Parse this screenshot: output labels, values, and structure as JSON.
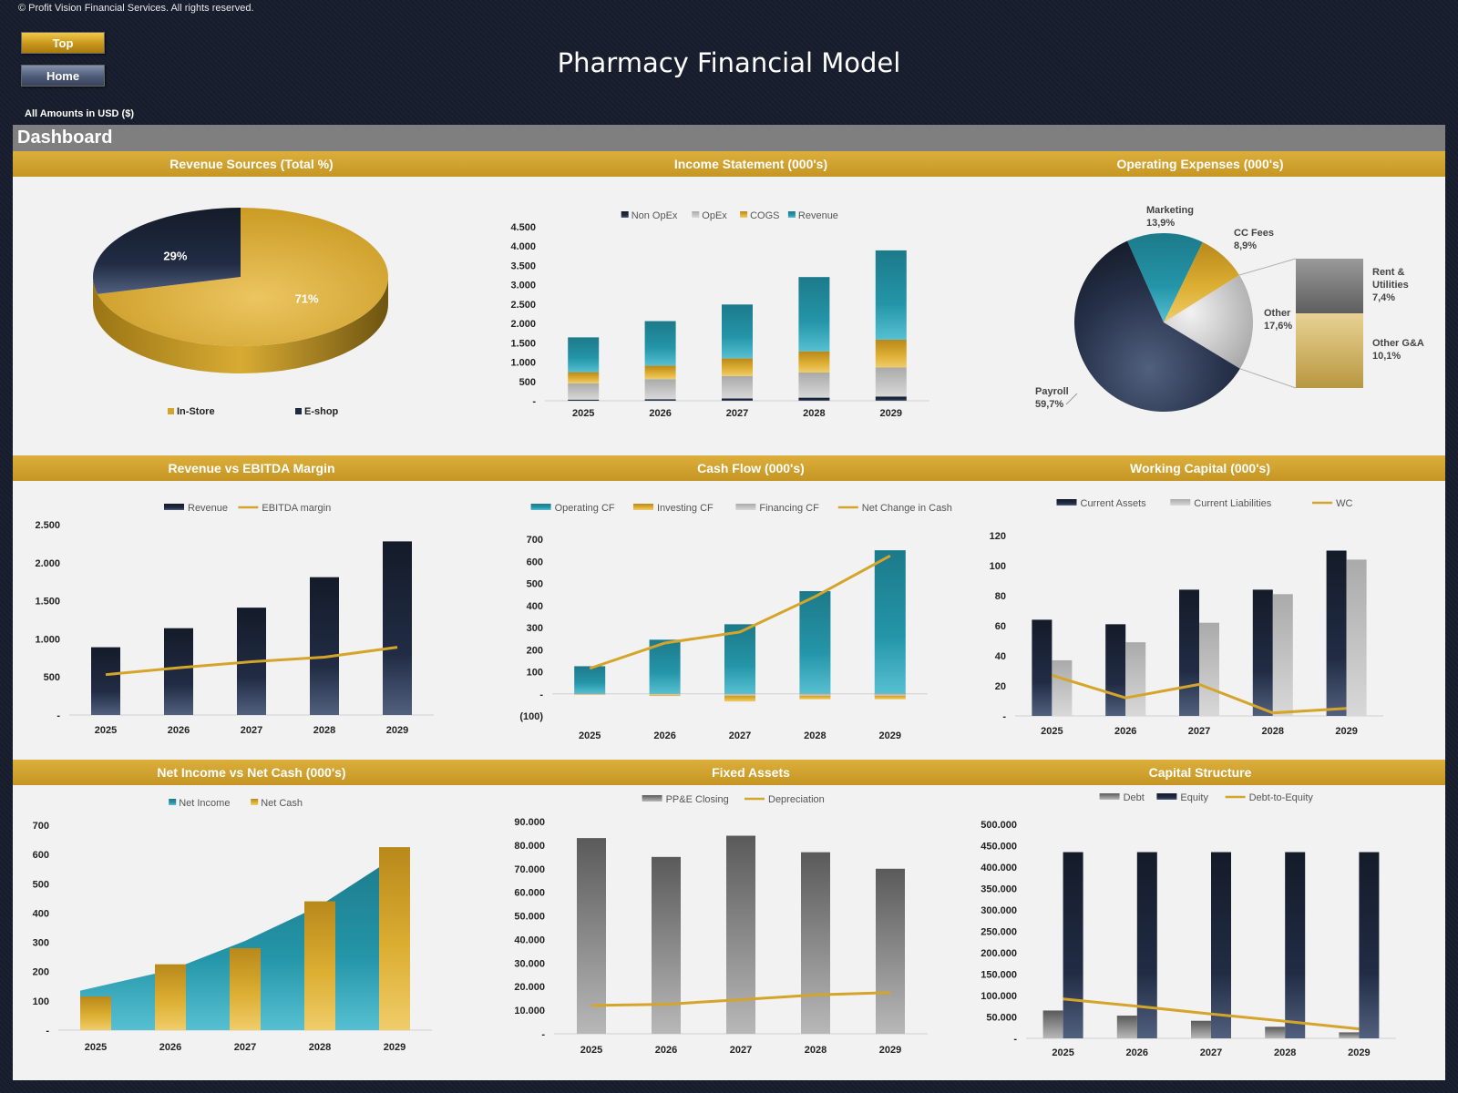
{
  "header": {
    "copyright": "© Profit Vision Financial Services. All rights reserved.",
    "top_button": "Top",
    "home_button": "Home",
    "title": "Pharmacy Financial Model",
    "amounts_note": "All Amounts in  USD ($)",
    "dashboard_label": "Dashboard"
  },
  "colors": {
    "gold": "#d4a52a",
    "navy": "#1b2538",
    "teal": "#23899b",
    "gray": "#8c8c8c",
    "banner": "#cfa032",
    "panel_bg": "#f2f2f2"
  },
  "chart_data": [
    {
      "id": "revenue_sources",
      "title": "Revenue Sources (Total %)",
      "type": "pie",
      "slices": [
        {
          "name": "In-Store",
          "value": 71,
          "label": "71%",
          "color": "#d4a52a"
        },
        {
          "name": "E-shop",
          "value": 29,
          "label": "29%",
          "color": "#1f2a40"
        }
      ],
      "legend": [
        "In-Store",
        "E-shop"
      ],
      "legend_position": "bottom"
    },
    {
      "id": "income_statement",
      "title": "Income Statement (000's)",
      "type": "bar",
      "stacked": true,
      "categories": [
        "2025",
        "2026",
        "2027",
        "2028",
        "2029"
      ],
      "series": [
        {
          "name": "Non OpEx",
          "values": [
            30,
            40,
            60,
            80,
            110
          ],
          "color": "#1f2a40"
        },
        {
          "name": "OpEx",
          "values": [
            420,
            520,
            580,
            650,
            750
          ],
          "color": "#8c8c8c"
        },
        {
          "name": "COGS",
          "values": [
            290,
            350,
            460,
            550,
            720
          ],
          "color": "#d4a52a"
        },
        {
          "name": "Revenue",
          "values": [
            900,
            1150,
            1390,
            1920,
            2310
          ],
          "color": "#23899b"
        }
      ],
      "legend_order": [
        "Non OpEx",
        "OpEx",
        "COGS",
        "Revenue"
      ],
      "ylim": [
        0,
        4500
      ],
      "yticks": [
        0,
        500,
        1000,
        1500,
        2000,
        2500,
        3000,
        3500,
        4000,
        4500
      ],
      "ytick_labels": [
        "-",
        "500",
        "1.000",
        "1.500",
        "2.000",
        "2.500",
        "3.000",
        "3.500",
        "4.000",
        "4.500"
      ]
    },
    {
      "id": "operating_expenses",
      "title": "Operating Expenses (000's)",
      "type": "pie",
      "slices": [
        {
          "name": "Payroll",
          "value": 59.7,
          "label": "59,7%",
          "color": "#1f2a40"
        },
        {
          "name": "Marketing",
          "value": 13.9,
          "label": "13,9%",
          "color": "#23899b"
        },
        {
          "name": "CC Fees",
          "value": 8.9,
          "label": "8,9%",
          "color": "#d4a52a"
        },
        {
          "name": "Other",
          "value": 17.6,
          "label": "17,6%",
          "color": "#c8c8c8"
        }
      ],
      "breakdown_of": "Other",
      "breakdown": [
        {
          "name": "Rent & Utilities",
          "value": 7.4,
          "label": "7,4%",
          "color": "#8c8c8c"
        },
        {
          "name": "Other G&A",
          "value": 10.1,
          "label": "10,1%",
          "color": "#d9c07e"
        }
      ]
    },
    {
      "id": "revenue_vs_ebitda",
      "title": "Revenue vs EBITDA Margin",
      "type": "bar",
      "categories": [
        "2025",
        "2026",
        "2027",
        "2028",
        "2029"
      ],
      "series": [
        {
          "name": "Revenue",
          "type": "bar",
          "values": [
            890,
            1140,
            1410,
            1810,
            2280
          ],
          "color": "#1f2a40"
        },
        {
          "name": "EBITDA margin",
          "type": "line",
          "values": [
            530,
            620,
            700,
            760,
            890
          ],
          "color": "#d4a52a"
        }
      ],
      "ylim": [
        0,
        2500
      ],
      "yticks": [
        0,
        500,
        1000,
        1500,
        2000,
        2500
      ],
      "ytick_labels": [
        "-",
        "500",
        "1.000",
        "1.500",
        "2.000",
        "2.500"
      ]
    },
    {
      "id": "cash_flow",
      "title": "Cash Flow (000's)",
      "type": "bar",
      "categories": [
        "2025",
        "2026",
        "2027",
        "2028",
        "2029"
      ],
      "series": [
        {
          "name": "Operating CF",
          "type": "bar",
          "values": [
            125,
            245,
            315,
            465,
            650
          ],
          "color": "#23899b"
        },
        {
          "name": "Investing CF",
          "type": "bar",
          "values": [
            -5,
            -10,
            -35,
            -25,
            -25
          ],
          "color": "#d4a52a"
        },
        {
          "name": "Financing CF",
          "type": "bar",
          "values": [
            -3,
            -5,
            -8,
            -8,
            -8
          ],
          "color": "#8c8c8c"
        },
        {
          "name": "Net Change in Cash",
          "type": "line",
          "values": [
            115,
            230,
            280,
            440,
            625
          ],
          "color": "#d4a52a"
        }
      ],
      "ylim": [
        -100,
        700
      ],
      "yticks": [
        -100,
        0,
        100,
        200,
        300,
        400,
        500,
        600,
        700
      ],
      "ytick_labels": [
        "(100)",
        "-",
        "100",
        "200",
        "300",
        "400",
        "500",
        "600",
        "700"
      ]
    },
    {
      "id": "working_capital",
      "title": "Working Capital (000's)",
      "type": "bar",
      "categories": [
        "2025",
        "2026",
        "2027",
        "2028",
        "2029"
      ],
      "series": [
        {
          "name": "Current Assets",
          "type": "bar",
          "values": [
            64,
            61,
            84,
            84,
            110
          ],
          "color": "#1f2a40"
        },
        {
          "name": "Current Liabilities",
          "type": "bar",
          "values": [
            37,
            49,
            62,
            81,
            104
          ],
          "color": "#8c8c8c"
        },
        {
          "name": "WC",
          "type": "line",
          "values": [
            27,
            12,
            21,
            2,
            5
          ],
          "color": "#d4a52a"
        }
      ],
      "ylim": [
        0,
        120
      ],
      "yticks": [
        0,
        20,
        40,
        60,
        80,
        100,
        120
      ],
      "ytick_labels": [
        "-",
        "20",
        "40",
        "60",
        "80",
        "100",
        "120"
      ]
    },
    {
      "id": "net_income_vs_net_cash",
      "title": "Net Income vs Net Cash (000's)",
      "type": "area",
      "categories": [
        "2025",
        "2026",
        "2027",
        "2028",
        "2029"
      ],
      "series": [
        {
          "name": "Net Income",
          "type": "area",
          "values": [
            135,
            205,
            305,
            425,
            625
          ],
          "color": "#23899b"
        },
        {
          "name": "Net Cash",
          "type": "bar",
          "values": [
            115,
            225,
            280,
            440,
            625
          ],
          "color": "#d4a52a"
        }
      ],
      "ylim": [
        0,
        700
      ],
      "yticks": [
        0,
        100,
        200,
        300,
        400,
        500,
        600,
        700
      ],
      "ytick_labels": [
        "-",
        "100",
        "200",
        "300",
        "400",
        "500",
        "600",
        "700"
      ]
    },
    {
      "id": "fixed_assets",
      "title": "Fixed Assets",
      "type": "bar",
      "categories": [
        "2025",
        "2026",
        "2027",
        "2028",
        "2029"
      ],
      "series": [
        {
          "name": "PP&E Closing",
          "type": "bar",
          "values": [
            83000,
            75000,
            84000,
            77000,
            70000
          ],
          "color": "#6e6e6e"
        },
        {
          "name": "Depreciation",
          "type": "line",
          "values": [
            12000,
            12500,
            14500,
            16500,
            17500
          ],
          "color": "#d4a52a"
        }
      ],
      "ylim": [
        0,
        90000
      ],
      "yticks": [
        0,
        10000,
        20000,
        30000,
        40000,
        50000,
        60000,
        70000,
        80000,
        90000
      ],
      "ytick_labels": [
        "-",
        "10.000",
        "20.000",
        "30.000",
        "40.000",
        "50.000",
        "60.000",
        "70.000",
        "80.000",
        "90.000"
      ]
    },
    {
      "id": "capital_structure",
      "title": "Capital Structure",
      "type": "bar",
      "categories": [
        "2025",
        "2026",
        "2027",
        "2028",
        "2029"
      ],
      "series": [
        {
          "name": "Debt",
          "type": "bar",
          "values": [
            65000,
            53000,
            41000,
            27000,
            14000
          ],
          "color": "#6e6e6e"
        },
        {
          "name": "Equity",
          "type": "bar",
          "values": [
            435000,
            435000,
            435000,
            435000,
            435000
          ],
          "color": "#1f2a40"
        },
        {
          "name": "Debt-to-Equity",
          "type": "line",
          "values": [
            92000,
            75000,
            57000,
            40000,
            22000
          ],
          "color": "#d4a52a"
        }
      ],
      "ylim": [
        0,
        500000
      ],
      "yticks": [
        0,
        50000,
        100000,
        150000,
        200000,
        250000,
        300000,
        350000,
        400000,
        450000,
        500000
      ],
      "ytick_labels": [
        "-",
        "50.000",
        "100.000",
        "150.000",
        "200.000",
        "250.000",
        "300.000",
        "350.000",
        "400.000",
        "450.000",
        "500.000"
      ]
    }
  ]
}
